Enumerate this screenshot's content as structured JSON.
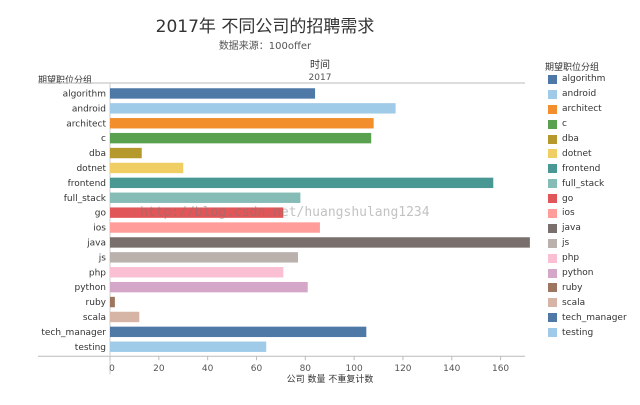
{
  "header": {
    "title": "2017年 不同公司的招聘需求",
    "subtitle": "数据来源：100offer",
    "column_header": "时间",
    "column_value": "2017",
    "row_group_label": "期望职位分组",
    "legend_title": "期望职位分组"
  },
  "watermark": "http://blog.csdn.net/huangshulang1234",
  "chart_data": {
    "type": "bar",
    "orientation": "horizontal",
    "title": "2017年 不同公司的招聘需求",
    "subtitle": "数据来源：100offer",
    "xlabel": "公司 数量 不重复计数",
    "ylabel": "期望职位分组",
    "xlim": [
      0,
      170
    ],
    "xticks": [
      0,
      20,
      40,
      60,
      80,
      100,
      120,
      140,
      160
    ],
    "grid": false,
    "legend_position": "right",
    "categories": [
      "algorithm",
      "android",
      "architect",
      "c",
      "dba",
      "dotnet",
      "frontend",
      "full_stack",
      "go",
      "ios",
      "java",
      "js",
      "php",
      "python",
      "ruby",
      "scala",
      "tech_manager",
      "testing"
    ],
    "values": [
      84,
      117,
      108,
      107,
      13,
      30,
      157,
      78,
      71,
      86,
      172,
      77,
      71,
      81,
      2,
      12,
      105,
      64
    ],
    "colors": [
      "#4e79a7",
      "#a0cbe8",
      "#f28e2b",
      "#59a14f",
      "#b6992d",
      "#f1ce63",
      "#499894",
      "#86bcb6",
      "#e15759",
      "#ff9d9a",
      "#79706e",
      "#bab0ac",
      "#fabfd2",
      "#d4a6c8",
      "#9d7660",
      "#d7b5a6",
      "#4e79a7",
      "#a0cbe8"
    ]
  }
}
